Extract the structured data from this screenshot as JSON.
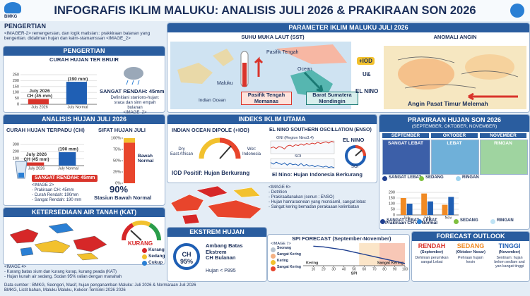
{
  "header": {
    "logo": "BMKG",
    "title": "INFOGRAFIS IKLIM MALUKU: ANALISIS JULI 2026 & PRAKIRAAN SON 2026"
  },
  "intro": {
    "title": "PENGERTIAN",
    "text": "<IMAGER-2> remengersian, dan logik matisian:: prakkiraan balanan yang bengertian. didaliman hujan dan kalm-stamamssan <IMAGE_2>"
  },
  "definition": {
    "header": "PENGERTIAN",
    "subtitle": "CURAH HUJAN TER BRUIR",
    "chart": {
      "categories": [
        "July 2026",
        "July Normal"
      ],
      "values": [
        45,
        190
      ],
      "value_labels": [
        "CH (45 mm)",
        "(190 mm)"
      ],
      "note": "July 2026",
      "colors": [
        "#d9342b",
        "#1f5fb4"
      ],
      "ylim": [
        0,
        250
      ],
      "yticks": [
        0,
        50,
        100,
        150,
        200,
        250
      ]
    },
    "status": "SANGAT RENDAH: 45mm",
    "note": "Definitiani stanions-hujan:\nsraca dan sinn empah bulanan\n<IMAGE_2>"
  },
  "analysis": {
    "header": "ANALISIS HUJAN JULI 2026",
    "ch_title": "CURAH HUJAN TERPADU (CH)",
    "ch_chart": {
      "categories": [
        "July 2026",
        "July Normal"
      ],
      "values": [
        45,
        190
      ],
      "value_labels": [
        "CH (45 mm)",
        "(190 mm)"
      ],
      "note": "July 2026",
      "colors": [
        "#d9342b",
        "#1f5fb4"
      ],
      "ylim": [
        0,
        300
      ],
      "yticks": [
        0,
        100,
        200,
        300
      ]
    },
    "sifat_title": "SIFAT HUJAN JULI",
    "sifat_chart": {
      "values": [
        90,
        10
      ],
      "colors": [
        "#e8452c",
        "#f2c12e"
      ],
      "label": "Bawah\nNormal",
      "value_label": "90%",
      "caption": "Stasiun Bawah Normal",
      "ylim": [
        0,
        100
      ],
      "yticks": [
        {
          "value": 0,
          "label": "0%"
        },
        {
          "value": 25,
          "label": "25%"
        },
        {
          "value": 50,
          "label": "50%"
        },
        {
          "value": 75,
          "label": "75%"
        },
        {
          "value": 100,
          "label": "100%"
        }
      ]
    },
    "status": "SANGAT RENDAH: 45mm",
    "note": "<IMAGE 2>\n- Prakiraan CH: 45mm\n- Curah Rendah: 190mm\n- Sangat Rendah: 190 mm"
  },
  "kat": {
    "header": "KETERSEDIAAN AIR TANAH (KAT)",
    "gauge_label": "KURANG",
    "legend": [
      {
        "label": "Kurang",
        "color": "#d62728"
      },
      {
        "label": "Sedang",
        "color": "#f2c12e"
      },
      {
        "label": "Cukup",
        "color": "#2a7fd4"
      }
    ],
    "note": "<IMAGE 4>\n- Kurang batas sium dan kurang kurap, kurang peada (KAT)\n- Hujan kunah air sedang, Sodan 95% ralian dengan manahah"
  },
  "parameter": {
    "header": "PARAMETER IKLIM MALUKU JULI 2026",
    "sst": {
      "title": "SUHU MUKA LAUT (SST)",
      "pacific": "Pasifik Tengah",
      "maluku": "Maluku",
      "indian": "Indian Ocean",
      "ocean": "Ocean",
      "warm": "Pasifik Tengah\nMemanas",
      "cool": "Barat Sumatera\nMendingin"
    },
    "link": {
      "iod": "+IOD",
      "and": "U&",
      "enso": "EL NINO"
    },
    "wind": {
      "title": "ANOMALI ANGIN",
      "caption": "Angin Pasat Timur Melemah"
    }
  },
  "indices": {
    "header": "INDEKS IKLIM UTAMA",
    "iod": {
      "title": "INDIAN OCEAN DIPOLE (+IOD)",
      "dry": "Dry\nEast African",
      "wet": "Wet:\nIndonesia",
      "caption": "IOD Positif: Hujan Berkurang"
    },
    "enso": {
      "title": "EL NINO SOUTHERN OSCILLATION (ENSO)",
      "oni_title": "ONI (Region Nino3.4)",
      "oni": {
        "values": [
          -0.2,
          0.1,
          -0.3,
          0.2,
          0,
          -0.4,
          0.3,
          0.5,
          0.2,
          0.6,
          0.4,
          0.8,
          0.5,
          0.9,
          0.7,
          1.0,
          0.8,
          1.2,
          0.9,
          1.1,
          1.3,
          1.0,
          1.4,
          1.2
        ],
        "color": "#d9342b",
        "ylim": [
          -1.5,
          1.5
        ]
      },
      "soi_title": "SOI",
      "soi": {
        "values": [
          0.3,
          -0.2,
          0.4,
          0,
          -0.3,
          0.2,
          -0.5,
          0.1,
          -0.4,
          -0.2,
          -0.6,
          0,
          -0.7,
          -0.3,
          -0.8,
          -0.5,
          -1.0,
          -0.6,
          -0.9,
          -1.1,
          -0.8,
          -1.2,
          -1.0,
          -1.3
        ],
        "color": "#1f5fb4",
        "ylim": [
          -1.5,
          1.5
        ]
      },
      "gauge_title": "EL NINO",
      "gauge_label": "SOI",
      "caption": "El Nino: Hujan Indonesia Berkurang"
    }
  },
  "son": {
    "header": "PRAKIRAAN HUJAN SON 2026",
    "subheader": "(SEPTEMBER, OKTOBER, NOVEMBER)",
    "months": [
      {
        "name": "SEPTEMBER",
        "class": "SANGAT LEBAT"
      },
      {
        "name": "OKTOBER",
        "class": "LEBAT"
      },
      {
        "name": "NOVEMBER",
        "class": "RINGAN"
      }
    ],
    "legend": [
      {
        "label": "SANGAT LEBAT",
        "color": "#1f3f8f"
      },
      {
        "label": "SEDANG",
        "color": "#7fbf3f"
      },
      {
        "label": "RINGAN",
        "color": "#9fd4f0"
      }
    ],
    "chart": {
      "categories": [
        "July",
        "Feb",
        "Nov"
      ],
      "series": [
        {
          "color": "#f08a24",
          "values": [
            150,
            190,
            90
          ]
        },
        {
          "color": "#1f5fb4",
          "values": [
            100,
            120,
            160
          ]
        }
      ],
      "ylim": [
        0,
        200
      ],
      "yticks": [
        0,
        50,
        100,
        150,
        200
      ]
    },
    "caption": "Prakiraan CH vs Normal",
    "legend_bottom": [
      {
        "label": "SANGAT LEBAT",
        "color": "#1f3f8f"
      },
      {
        "label": "LEBAT",
        "color": "#2a7fd4"
      },
      {
        "label": "SEDANG",
        "color": "#7fbf3f"
      },
      {
        "label": "RINGAN",
        "color": "#bfe3f5"
      }
    ]
  },
  "enso_map": {
    "note": "<IMAGE 6>\n- Detrition\n- Prakiraaitanakan (senun : ENSO)\n- Hujan hanraraonean yang mcnsiamil, sangat lebat\n- Sangat kering bemadan perakaaan kelimbatan"
  },
  "extreme": {
    "header": "EKSTREM HUJAN",
    "badge": "CH\n95%",
    "text": "Ambang Batas\nEkstrem\nCH Bulanan",
    "note": "Hujan < P895"
  },
  "spi": {
    "title": "SPI FORECAST (September-November)",
    "legend_title": "<IMAGE 7>",
    "legend": [
      {
        "label": "Seorang",
        "color": "#b8c4d0"
      },
      {
        "label": "Sangat Kering",
        "color": "#f4b183"
      },
      {
        "label": "Kering",
        "color": "#f2c12e"
      },
      {
        "label": "Sangat Kering",
        "color": "#e8452c"
      }
    ],
    "chart": {
      "x": [
        10,
        20,
        30,
        40,
        50,
        60,
        70,
        80,
        90,
        100
      ],
      "values": [
        0.6,
        0.5,
        0.3,
        0.1,
        -0.2,
        -0.5,
        -0.8,
        -1.1,
        -1.4,
        -1.7
      ],
      "color": "#1f3f8f",
      "xlim": [
        0,
        100
      ],
      "xticks": [
        10,
        20,
        30,
        40,
        50,
        60,
        70,
        80,
        90,
        100
      ],
      "ylim": [
        -2,
        1
      ],
      "xlabel": "SPI",
      "annotations": [
        "Kering",
        "Sangat Kering"
      ]
    }
  },
  "outlook": {
    "header": "FORECAST OUTLOOK",
    "items": [
      {
        "level": "RENDAH",
        "month": "(September)",
        "text": "Dehinian perumikan\nsangat Lebat",
        "color": "#d9342b"
      },
      {
        "level": "SEDANG",
        "month": "(Oktober Nosar)",
        "text": "Pehraan hujam\nkesin",
        "color": "#f08a24"
      },
      {
        "level": "TINGGI",
        "month": "(November)",
        "text": "Sentiram: hujan\nbelom sedlam and\nyan kangat tinggi",
        "color": "#1f5fb4"
      }
    ]
  },
  "footer": {
    "text": "Data sumber : BMKG, Seongori, Masif, hujan penganamban Maluku: Juli 2026 & Normaraan Juli 2026\nBMKG, Listit bahan, Maluku Maluku, Kokeor-Tenlsrini 2026 2026"
  }
}
